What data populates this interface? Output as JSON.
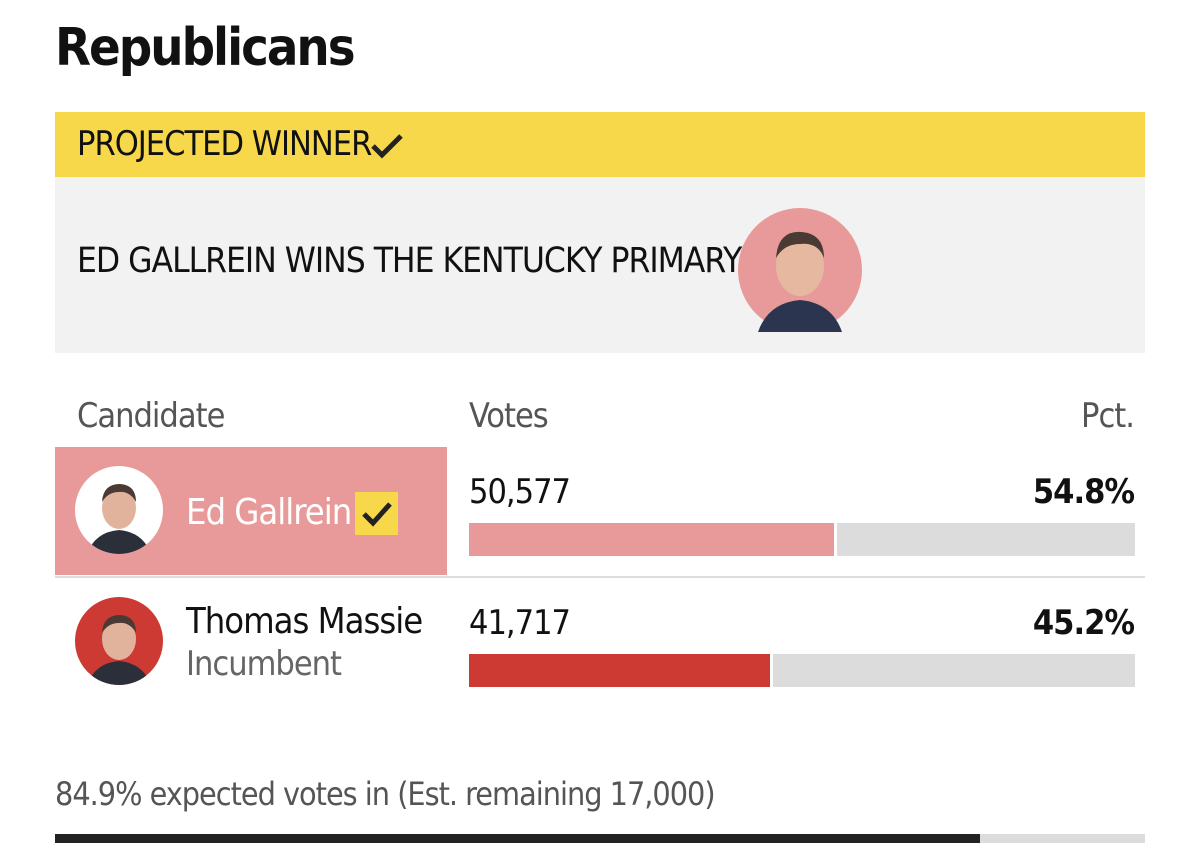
{
  "header": {
    "title": "Republicans"
  },
  "banner": {
    "label": "PROJECTED WINNER",
    "headline": "ED GALLREIN WINS THE KENTUCKY PRIMARY"
  },
  "table": {
    "columns": [
      "Candidate",
      "Votes",
      "Pct."
    ],
    "rows": [
      {
        "name": "Ed Gallrein",
        "votes": "50,577",
        "pct": {
          "value": 54.8,
          "label": "54.8%"
        },
        "color": "#e89a9a",
        "winner": true
      },
      {
        "name": "Thomas Massie",
        "subtitle": "Incumbent",
        "votes": "41,717",
        "pct": {
          "value": 45.2,
          "label": "45.2%"
        },
        "color": "#cc3a33",
        "winner": false
      }
    ]
  },
  "footer": {
    "expected": {
      "value": 84.9,
      "label": "84.9%"
    },
    "text": "expected votes in (Est. remaining 17,000)"
  }
}
